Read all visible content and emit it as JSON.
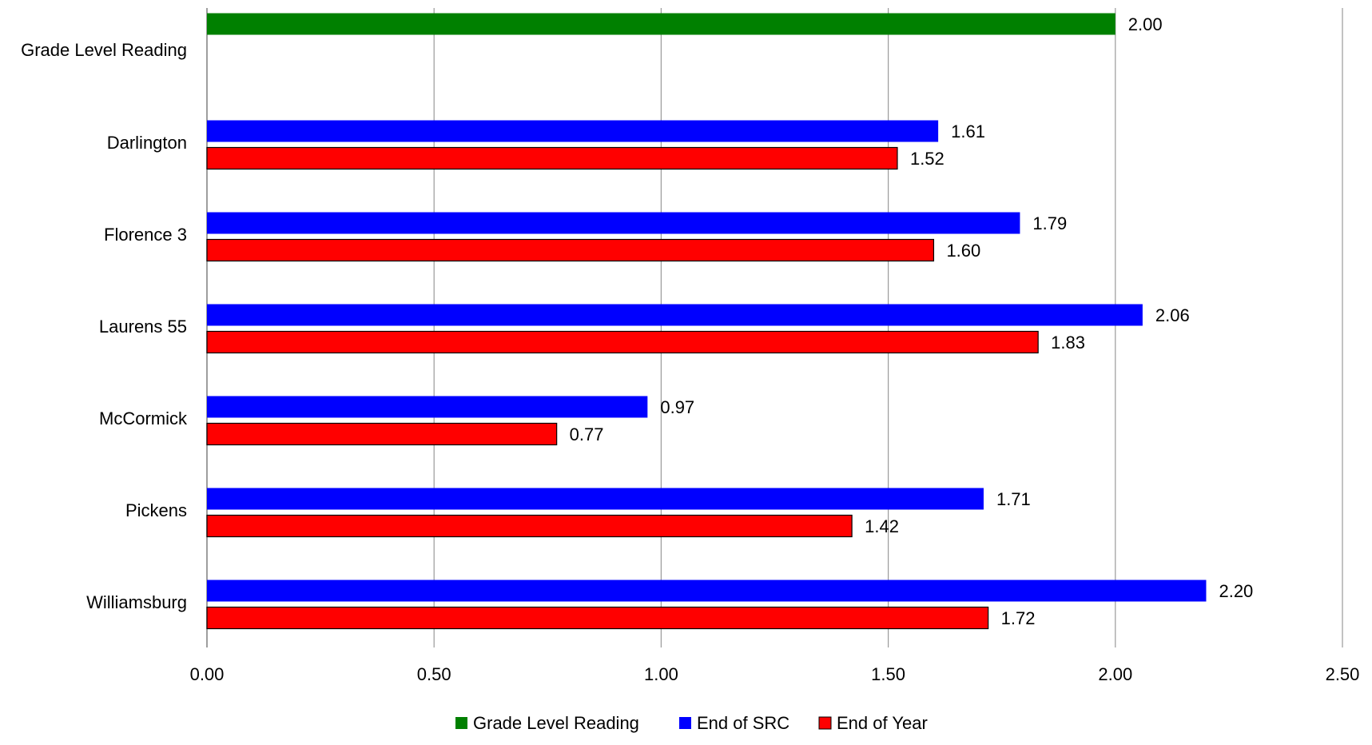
{
  "chart_data": {
    "type": "bar",
    "orientation": "horizontal",
    "title": "",
    "xlabel": "",
    "ylabel": "",
    "xlim": [
      0,
      2.5
    ],
    "x_ticks": [
      "0.00",
      "0.50",
      "1.00",
      "1.50",
      "2.00",
      "2.50"
    ],
    "grid": "vertical",
    "legend_position": "bottom",
    "categories": [
      "Grade Level Reading",
      "Darlington",
      "Florence 3",
      "Laurens 55",
      "McCormick",
      "Pickens",
      "Williamsburg"
    ],
    "series": [
      {
        "name": "Grade Level Reading",
        "color": "#008000",
        "values": [
          2.0,
          null,
          null,
          null,
          null,
          null,
          null
        ],
        "labels": [
          "2.00",
          null,
          null,
          null,
          null,
          null,
          null
        ]
      },
      {
        "name": "End of SRC",
        "color": "#0000FF",
        "values": [
          null,
          1.61,
          1.79,
          2.06,
          0.97,
          1.71,
          2.2
        ],
        "labels": [
          null,
          "1.61",
          "1.79",
          "2.06",
          "0.97",
          "1.71",
          "2.20"
        ]
      },
      {
        "name": "End of Year",
        "color": "#FF0000",
        "values": [
          null,
          1.52,
          1.6,
          1.83,
          0.77,
          1.42,
          1.72
        ],
        "labels": [
          null,
          "1.52",
          "1.60",
          "1.83",
          "0.77",
          "1.42",
          "1.72"
        ]
      }
    ]
  }
}
